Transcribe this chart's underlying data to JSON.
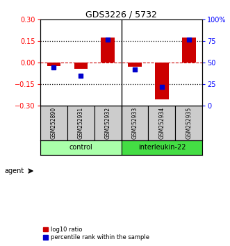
{
  "title": "GDS3226 / 5732",
  "samples": [
    "GSM252890",
    "GSM252931",
    "GSM252932",
    "GSM252933",
    "GSM252934",
    "GSM252935"
  ],
  "log10_ratio": [
    -0.022,
    -0.042,
    0.178,
    -0.028,
    -0.255,
    0.178
  ],
  "percentile_rank": [
    45,
    35,
    77,
    42,
    22,
    77
  ],
  "ylim_left": [
    -0.3,
    0.3
  ],
  "ylim_right": [
    0,
    100
  ],
  "yticks_left": [
    -0.3,
    -0.15,
    0,
    0.15,
    0.3
  ],
  "yticks_right": [
    0,
    25,
    50,
    75,
    100
  ],
  "groups": [
    {
      "label": "control",
      "color": "#aaffaa"
    },
    {
      "label": "interleukin-22",
      "color": "#44dd44"
    }
  ],
  "bar_color": "#cc0000",
  "square_color": "#0000cc",
  "hline_color": "#cc0000",
  "dotline_color": "#000000",
  "legend_red_label": "log10 ratio",
  "legend_blue_label": "percentile rank within the sample",
  "agent_label": "agent",
  "bar_width": 0.5,
  "square_size": 18
}
